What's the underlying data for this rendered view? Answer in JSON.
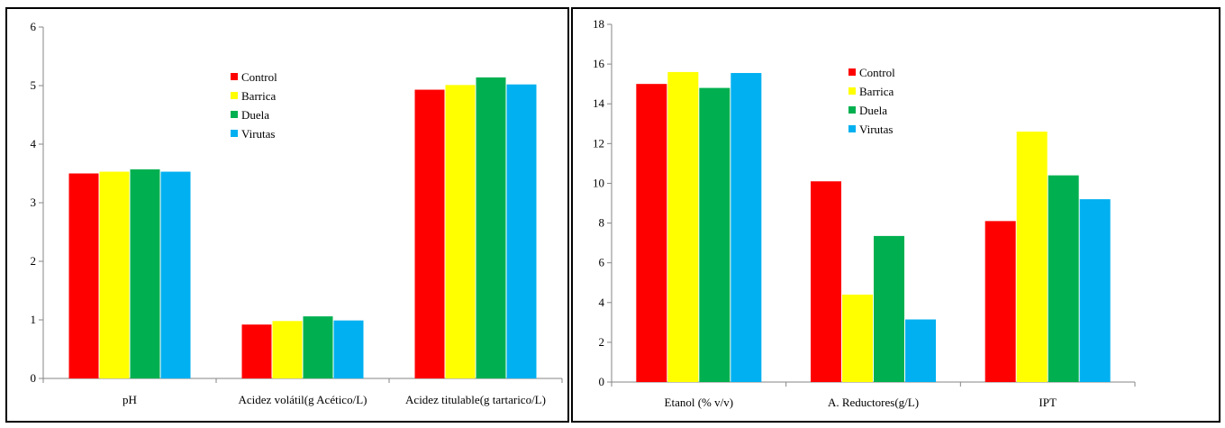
{
  "colors": {
    "Control": "#ff0000",
    "Barrica": "#ffff00",
    "Duela": "#00b050",
    "Virutas": "#00b0f0"
  },
  "chart_data": [
    {
      "type": "bar",
      "categories": [
        "pH",
        "Acidez volátil(g Acético/L)",
        "Acidez titulable(g tartarico/L)"
      ],
      "series": [
        {
          "name": "Control",
          "values": [
            3.5,
            0.92,
            4.93
          ]
        },
        {
          "name": "Barrica",
          "values": [
            3.53,
            0.98,
            5.01
          ]
        },
        {
          "name": "Duela",
          "values": [
            3.57,
            1.06,
            5.14
          ]
        },
        {
          "name": "Virutas",
          "values": [
            3.53,
            0.99,
            5.02
          ]
        }
      ],
      "yticks": [
        "0",
        "1",
        "2",
        "3",
        "4",
        "5",
        "6"
      ],
      "ylim": [
        0,
        6
      ],
      "legend_position": "inside-top-right",
      "grid": false
    },
    {
      "type": "bar",
      "categories": [
        "Etanol (% v/v)",
        "A. Reductores(g/L)",
        "IPT"
      ],
      "series": [
        {
          "name": "Control",
          "values": [
            15.0,
            10.1,
            8.1
          ]
        },
        {
          "name": "Barrica",
          "values": [
            15.6,
            4.4,
            12.6
          ]
        },
        {
          "name": "Duela",
          "values": [
            14.8,
            7.35,
            10.4
          ]
        },
        {
          "name": "Virutas",
          "values": [
            15.55,
            3.15,
            9.2
          ]
        }
      ],
      "yticks": [
        "0",
        "2",
        "4",
        "6",
        "8",
        "10",
        "12",
        "14",
        "16",
        "18"
      ],
      "ylim": [
        0,
        18
      ],
      "legend_position": "inside-top-center",
      "grid": false
    }
  ]
}
